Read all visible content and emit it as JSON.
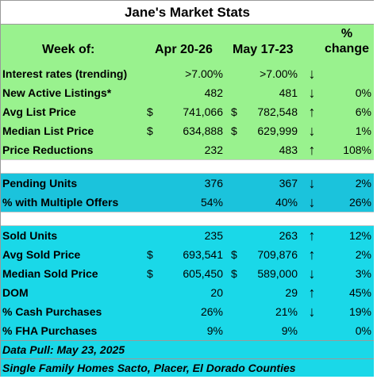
{
  "title": "Jane's Market Stats",
  "header": {
    "week_label": "Week of:",
    "col1": "Apr 20-26",
    "col2": "May 17-23",
    "pct_line1": "%",
    "pct_line2": "change"
  },
  "section1": [
    {
      "label": "Interest rates (trending)",
      "cur1": "",
      "v1": ">7.00%",
      "cur2": "",
      "v2": ">7.00%",
      "arrow": "↓",
      "pct": ""
    },
    {
      "label": "New Active Listings*",
      "cur1": "",
      "v1": "482",
      "cur2": "",
      "v2": "481",
      "arrow": "↓",
      "pct": "0%"
    },
    {
      "label": "Avg List Price",
      "cur1": "$",
      "v1": "741,066",
      "cur2": "$",
      "v2": "782,548",
      "arrow": "↑",
      "pct": "6%"
    },
    {
      "label": "Median List Price",
      "cur1": "$",
      "v1": "634,888",
      "cur2": "$",
      "v2": "629,999",
      "arrow": "↓",
      "pct": "1%"
    },
    {
      "label": "Price Reductions",
      "cur1": "",
      "v1": "232",
      "cur2": "",
      "v2": "483",
      "arrow": "↑",
      "pct": "108%"
    }
  ],
  "section2": [
    {
      "label": "Pending Units",
      "cur1": "",
      "v1": "376",
      "cur2": "",
      "v2": "367",
      "arrow": "↓",
      "pct": "2%"
    },
    {
      "label": "% with Multiple Offers",
      "cur1": "",
      "v1": "54%",
      "cur2": "",
      "v2": "40%",
      "arrow": "↓",
      "pct": "26%"
    }
  ],
  "section3": [
    {
      "label": "Sold Units",
      "cur1": "",
      "v1": "235",
      "cur2": "",
      "v2": "263",
      "arrow": "↑",
      "pct": "12%"
    },
    {
      "label": "Avg Sold Price",
      "cur1": "$",
      "v1": "693,541",
      "cur2": "$",
      "v2": "709,876",
      "arrow": "↑",
      "pct": "2%"
    },
    {
      "label": "Median Sold Price",
      "cur1": "$",
      "v1": "605,450",
      "cur2": "$",
      "v2": "589,000",
      "arrow": "↓",
      "pct": "3%"
    },
    {
      "label": "DOM",
      "cur1": "",
      "v1": "20",
      "cur2": "",
      "v2": "29",
      "arrow": "↑",
      "pct": "45%"
    },
    {
      "label": "% Cash Purchases",
      "cur1": "",
      "v1": "26%",
      "cur2": "",
      "v2": "21%",
      "arrow": "↓",
      "pct": "19%"
    },
    {
      "label": "% FHA Purchases",
      "cur1": "",
      "v1": "9%",
      "cur2": "",
      "v2": "9%",
      "arrow": "",
      "pct": "0%"
    }
  ],
  "footer": {
    "data_pull": "Data Pull: May 23, 2025",
    "scope": "Single Family Homes Sacto, Placer, El Dorado Counties"
  },
  "colors": {
    "green": "#99f28e",
    "teal": "#1bc3dc",
    "cyan": "#1ad8e8"
  }
}
